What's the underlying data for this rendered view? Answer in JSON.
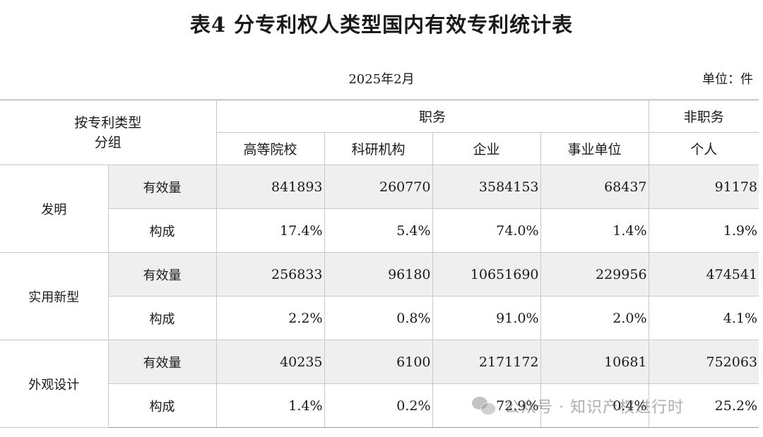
{
  "title": "表4 分专利权人类型国内有效专利统计表",
  "date": "2025年2月",
  "unit": "单位：件",
  "header": {
    "group_label_line1": "按专利类型",
    "group_label_line2": "分组",
    "duty_label": "职务",
    "nonduty_label": "非职务",
    "columns": [
      "高等院校",
      "科研机构",
      "企业",
      "事业单位",
      "个人"
    ]
  },
  "rows": [
    {
      "category": "发明",
      "count_label": "有效量",
      "counts": [
        "841893",
        "260770",
        "3584153",
        "68437",
        "91178"
      ],
      "share_label": "构成",
      "shares": [
        "17.4%",
        "5.4%",
        "74.0%",
        "1.4%",
        "1.9%"
      ]
    },
    {
      "category": "实用新型",
      "count_label": "有效量",
      "counts": [
        "256833",
        "96180",
        "10651690",
        "229956",
        "474541"
      ],
      "share_label": "构成",
      "shares": [
        "2.2%",
        "0.8%",
        "91.0%",
        "2.0%",
        "4.1%"
      ]
    },
    {
      "category": "外观设计",
      "count_label": "有效量",
      "counts": [
        "40235",
        "6100",
        "2171172",
        "10681",
        "752063"
      ],
      "share_label": "构成",
      "shares": [
        "1.4%",
        "0.2%",
        "72.9%",
        "0.4%",
        "25.2%"
      ]
    }
  ],
  "watermark": "公众号 · 知识产权进行时",
  "colors": {
    "shade": "#efefef",
    "border": "#c9c9c9"
  }
}
